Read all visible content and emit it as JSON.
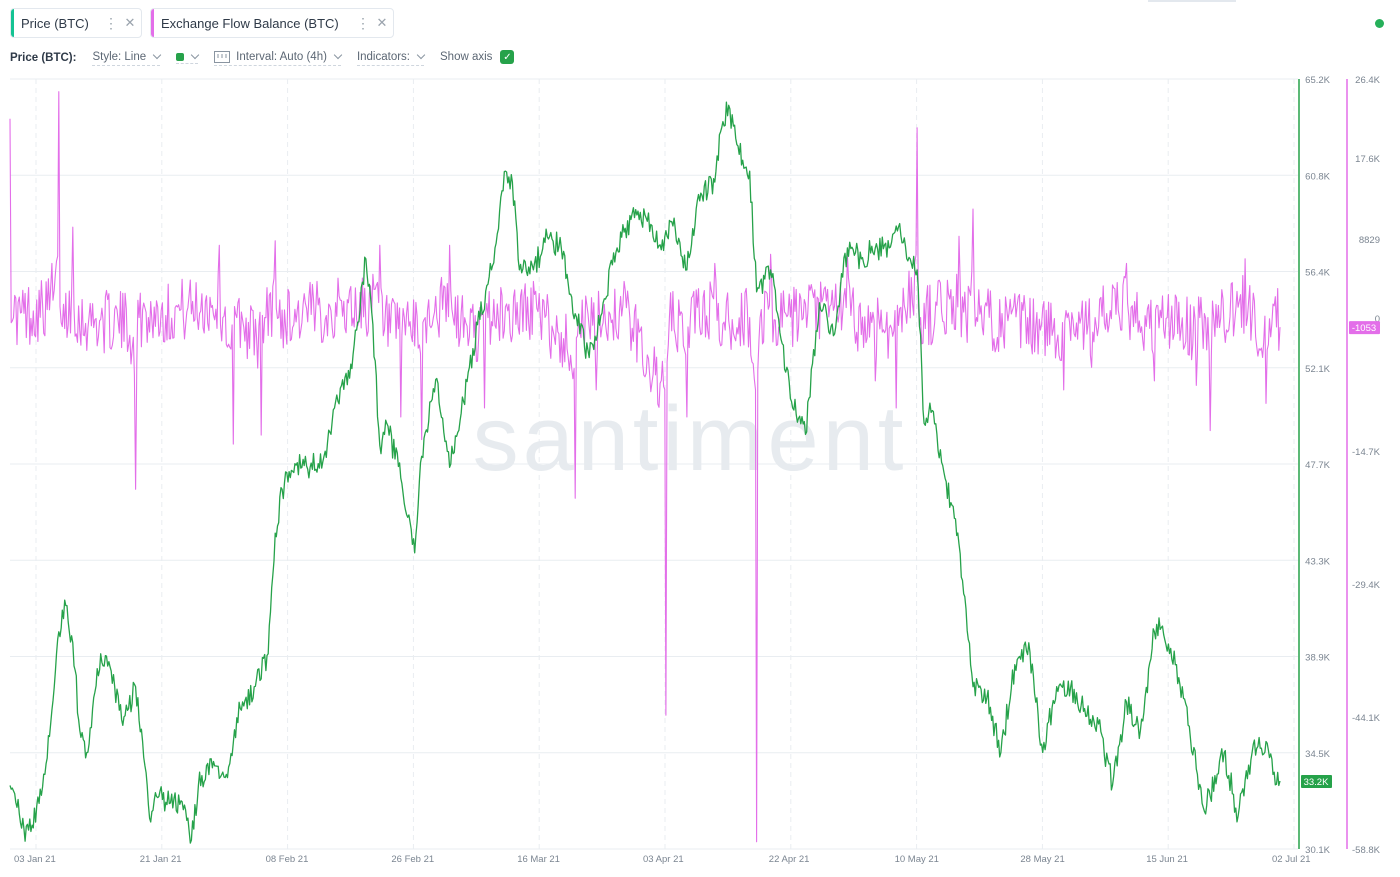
{
  "tabs": [
    {
      "label": "Price (BTC)",
      "color": "#14c393"
    },
    {
      "label": "Exchange Flow Balance (BTC)",
      "color": "#e36ee9"
    }
  ],
  "toolbar": {
    "title": "Price (BTC):",
    "style_label": "Style: Line",
    "interval_label": "Interval: Auto (4h)",
    "indicators_label": "Indicators:",
    "show_axis_label": "Show axis",
    "show_axis_checked": true
  },
  "icons": {
    "more": "⋮",
    "close": "✕",
    "check": "✓"
  },
  "status": {
    "color": "#26b05a"
  },
  "watermark": "santiment",
  "colors": {
    "price": "#26a24a",
    "flow": "#e36ee9",
    "grid": "#e9edf1",
    "axis_text": "#7b8591"
  },
  "chart_data": {
    "type": "line",
    "x_tick_labels": [
      "03 Jan 21",
      "21 Jan 21",
      "08 Feb 21",
      "26 Feb 21",
      "16 Mar 21",
      "03 Apr 21",
      "22 Apr 21",
      "10 May 21",
      "28 May 21",
      "15 Jun 21",
      "02 Jul 21"
    ],
    "xlim": [
      "2021-01-01",
      "2021-07-02"
    ],
    "price_axis": {
      "ticks": [
        "65.2K",
        "60.8K",
        "56.4K",
        "52.1K",
        "47.7K",
        "43.3K",
        "38.9K",
        "34.5K",
        "30.1K"
      ],
      "ylim": [
        30100,
        65200
      ],
      "current_label": "33.2K",
      "current_value": 33200
    },
    "flow_axis": {
      "ticks": [
        "26.4K",
        "17.6K",
        "8829",
        "0",
        "-14.7K",
        "-29.4K",
        "-44.1K",
        "-58.8K"
      ],
      "ylim": [
        -58800,
        26400
      ],
      "current_label": "-1053",
      "current_value": -1053
    },
    "series": [
      {
        "name": "Price (BTC)",
        "axis": "price",
        "points": [
          [
            "2021-01-01",
            33000
          ],
          [
            "2021-01-02",
            32000
          ],
          [
            "2021-01-03",
            31000
          ],
          [
            "2021-01-04",
            30900
          ],
          [
            "2021-01-06",
            33500
          ],
          [
            "2021-01-08",
            40000
          ],
          [
            "2021-01-09",
            41200
          ],
          [
            "2021-01-10",
            39500
          ],
          [
            "2021-01-11",
            35500
          ],
          [
            "2021-01-12",
            34500
          ],
          [
            "2021-01-13",
            37000
          ],
          [
            "2021-01-14",
            39000
          ],
          [
            "2021-01-16",
            37500
          ],
          [
            "2021-01-17",
            36000
          ],
          [
            "2021-01-18",
            36500
          ],
          [
            "2021-01-19",
            37500
          ],
          [
            "2021-01-20",
            35000
          ],
          [
            "2021-01-21",
            31500
          ],
          [
            "2021-01-22",
            32500
          ],
          [
            "2021-01-24",
            32200
          ],
          [
            "2021-01-26",
            32100
          ],
          [
            "2021-01-27",
            30500
          ],
          [
            "2021-01-28",
            33000
          ],
          [
            "2021-01-30",
            33800
          ],
          [
            "2021-02-01",
            33500
          ],
          [
            "2021-02-03",
            36500
          ],
          [
            "2021-02-05",
            37500
          ],
          [
            "2021-02-07",
            39000
          ],
          [
            "2021-02-08",
            44500
          ],
          [
            "2021-02-09",
            46500
          ],
          [
            "2021-02-11",
            47600
          ],
          [
            "2021-02-13",
            47500
          ],
          [
            "2021-02-15",
            48000
          ],
          [
            "2021-02-17",
            50500
          ],
          [
            "2021-02-19",
            52000
          ],
          [
            "2021-02-21",
            57000
          ],
          [
            "2021-02-22",
            54000
          ],
          [
            "2021-02-23",
            48500
          ],
          [
            "2021-02-24",
            49500
          ],
          [
            "2021-02-26",
            47000
          ],
          [
            "2021-02-28",
            43600
          ],
          [
            "2021-03-01",
            48000
          ],
          [
            "2021-03-03",
            51500
          ],
          [
            "2021-03-05",
            47500
          ],
          [
            "2021-03-07",
            50500
          ],
          [
            "2021-03-09",
            54000
          ],
          [
            "2021-03-11",
            56500
          ],
          [
            "2021-03-13",
            61000
          ],
          [
            "2021-03-14",
            60500
          ],
          [
            "2021-03-15",
            56500
          ],
          [
            "2021-03-17",
            56500
          ],
          [
            "2021-03-19",
            58000
          ],
          [
            "2021-03-21",
            57500
          ],
          [
            "2021-03-23",
            54500
          ],
          [
            "2021-03-25",
            52500
          ],
          [
            "2021-03-27",
            55000
          ],
          [
            "2021-03-29",
            57500
          ],
          [
            "2021-03-31",
            58800
          ],
          [
            "2021-04-02",
            59000
          ],
          [
            "2021-04-04",
            57600
          ],
          [
            "2021-04-06",
            58500
          ],
          [
            "2021-04-08",
            56500
          ],
          [
            "2021-04-10",
            60000
          ],
          [
            "2021-04-12",
            60500
          ],
          [
            "2021-04-13",
            63000
          ],
          [
            "2021-04-14",
            64000
          ],
          [
            "2021-04-15",
            62500
          ],
          [
            "2021-04-16",
            61500
          ],
          [
            "2021-04-17",
            61000
          ],
          [
            "2021-04-18",
            55500
          ],
          [
            "2021-04-20",
            56500
          ],
          [
            "2021-04-21",
            54500
          ],
          [
            "2021-04-23",
            50500
          ],
          [
            "2021-04-25",
            49000
          ],
          [
            "2021-04-27",
            55000
          ],
          [
            "2021-04-29",
            53500
          ],
          [
            "2021-05-01",
            57500
          ],
          [
            "2021-05-03",
            57000
          ],
          [
            "2021-05-05",
            57500
          ],
          [
            "2021-05-07",
            57500
          ],
          [
            "2021-05-08",
            58500
          ],
          [
            "2021-05-10",
            57000
          ],
          [
            "2021-05-11",
            56500
          ],
          [
            "2021-05-12",
            49500
          ],
          [
            "2021-05-13",
            50000
          ],
          [
            "2021-05-15",
            47000
          ],
          [
            "2021-05-17",
            44000
          ],
          [
            "2021-05-19",
            37500
          ],
          [
            "2021-05-21",
            37000
          ],
          [
            "2021-05-23",
            34500
          ],
          [
            "2021-05-25",
            38500
          ],
          [
            "2021-05-27",
            39500
          ],
          [
            "2021-05-29",
            34500
          ],
          [
            "2021-05-31",
            37500
          ],
          [
            "2021-06-02",
            37500
          ],
          [
            "2021-06-04",
            36500
          ],
          [
            "2021-06-06",
            35800
          ],
          [
            "2021-06-08",
            33000
          ],
          [
            "2021-06-10",
            36800
          ],
          [
            "2021-06-12",
            35500
          ],
          [
            "2021-06-14",
            40000
          ],
          [
            "2021-06-15",
            40200
          ],
          [
            "2021-06-17",
            38500
          ],
          [
            "2021-06-19",
            35700
          ],
          [
            "2021-06-21",
            32000
          ],
          [
            "2021-06-22",
            32500
          ],
          [
            "2021-06-24",
            34500
          ],
          [
            "2021-06-26",
            31600
          ],
          [
            "2021-06-28",
            34500
          ],
          [
            "2021-06-30",
            35000
          ],
          [
            "2021-07-01",
            33500
          ],
          [
            "2021-07-02",
            33200
          ]
        ]
      },
      {
        "name": "Exchange Flow Balance (BTC)",
        "axis": "flow",
        "points": [
          [
            "2021-01-01",
            22000
          ],
          [
            "2021-01-01T12",
            0
          ],
          [
            "2021-01-07",
            6000
          ],
          [
            "2021-01-08",
            25000
          ],
          [
            "2021-01-08T12",
            -1000
          ],
          [
            "2021-01-10",
            10000
          ],
          [
            "2021-01-11",
            -1500
          ],
          [
            "2021-01-18",
            -3000
          ],
          [
            "2021-01-19",
            -19000
          ],
          [
            "2021-01-19T12",
            0
          ],
          [
            "2021-01-31",
            8000
          ],
          [
            "2021-01-31T12",
            0
          ],
          [
            "2021-02-02",
            -14000
          ],
          [
            "2021-02-02T12",
            0
          ],
          [
            "2021-02-06",
            -13000
          ],
          [
            "2021-02-06T12",
            0
          ],
          [
            "2021-02-08",
            8500
          ],
          [
            "2021-02-08T12",
            0
          ],
          [
            "2021-02-23",
            8000
          ],
          [
            "2021-02-23T12",
            -2000
          ],
          [
            "2021-02-26",
            -11000
          ],
          [
            "2021-02-26T12",
            0
          ],
          [
            "2021-03-01",
            -13500
          ],
          [
            "2021-03-01T12",
            0
          ],
          [
            "2021-03-05",
            8000
          ],
          [
            "2021-03-05T12",
            0
          ],
          [
            "2021-03-10",
            -10000
          ],
          [
            "2021-03-10T12",
            0
          ],
          [
            "2021-03-17",
            4000
          ],
          [
            "2021-03-18",
            0
          ],
          [
            "2021-03-23",
            -20000
          ],
          [
            "2021-03-23T12",
            0
          ],
          [
            "2021-03-26",
            -8000
          ],
          [
            "2021-03-26T12",
            0
          ],
          [
            "2021-03-30",
            4000
          ],
          [
            "2021-04-05",
            -44000
          ],
          [
            "2021-04-05T12",
            0
          ],
          [
            "2021-04-08",
            -11000
          ],
          [
            "2021-04-08T12",
            0
          ],
          [
            "2021-04-12",
            6000
          ],
          [
            "2021-04-13",
            -3000
          ],
          [
            "2021-04-17",
            0
          ],
          [
            "2021-04-18",
            -58000
          ],
          [
            "2021-04-18T12",
            0
          ],
          [
            "2021-04-20",
            7000
          ],
          [
            "2021-04-21",
            -3000
          ],
          [
            "2021-04-25",
            1500
          ],
          [
            "2021-05-01",
            7000
          ],
          [
            "2021-05-02",
            -1000
          ],
          [
            "2021-05-05",
            -7000
          ],
          [
            "2021-05-05T12",
            0
          ],
          [
            "2021-05-08",
            -10000
          ],
          [
            "2021-05-08T12",
            1000
          ],
          [
            "2021-05-11",
            21000
          ],
          [
            "2021-05-11T12",
            0
          ],
          [
            "2021-05-17",
            9000
          ],
          [
            "2021-05-18",
            0
          ],
          [
            "2021-05-19",
            12000
          ],
          [
            "2021-05-19T12",
            0
          ],
          [
            "2021-06-01",
            -8000
          ],
          [
            "2021-06-01T12",
            0
          ],
          [
            "2021-06-05",
            -5500
          ],
          [
            "2021-06-05T12",
            0
          ],
          [
            "2021-06-10",
            6000
          ],
          [
            "2021-06-11",
            -1000
          ],
          [
            "2021-06-14",
            -7000
          ],
          [
            "2021-06-15",
            0
          ],
          [
            "2021-06-20",
            -7500
          ],
          [
            "2021-06-20T12",
            0
          ],
          [
            "2021-06-22",
            -12500
          ],
          [
            "2021-06-22T12",
            0
          ],
          [
            "2021-06-27",
            6500
          ],
          [
            "2021-06-28",
            0
          ],
          [
            "2021-06-30",
            -9500
          ],
          [
            "2021-07-01",
            1500
          ],
          [
            "2021-07-02",
            -1053
          ]
        ]
      }
    ]
  }
}
